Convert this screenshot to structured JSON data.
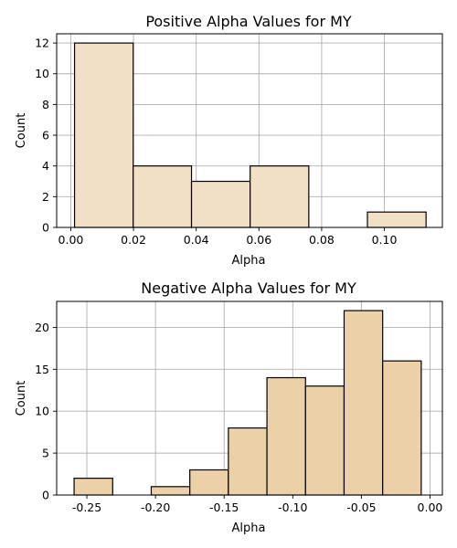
{
  "chart_data": [
    {
      "type": "bar",
      "title": "Positive Alpha Values for MY",
      "xlabel": "Alpha",
      "ylabel": "Count",
      "bar_color": "#f2e0c6",
      "edge_color": "#000000",
      "grid": true,
      "xlim": [
        -0.0045,
        0.1185
      ],
      "ylim": [
        0,
        12.6
      ],
      "xticks": [
        0.0,
        0.02,
        0.04,
        0.06,
        0.08,
        0.1
      ],
      "xtick_labels": [
        "0.00",
        "0.02",
        "0.04",
        "0.06",
        "0.08",
        "0.10"
      ],
      "yticks": [
        0,
        2,
        4,
        6,
        8,
        10,
        12
      ],
      "ytick_labels": [
        "0",
        "2",
        "4",
        "6",
        "8",
        "10",
        "12"
      ],
      "bins": [
        {
          "x0": 0.0012,
          "x1": 0.0199,
          "count": 12
        },
        {
          "x0": 0.0199,
          "x1": 0.0385,
          "count": 4
        },
        {
          "x0": 0.0385,
          "x1": 0.0572,
          "count": 3
        },
        {
          "x0": 0.0572,
          "x1": 0.0759,
          "count": 4
        },
        {
          "x0": 0.0759,
          "x1": 0.0946,
          "count": 0
        },
        {
          "x0": 0.0946,
          "x1": 0.1133,
          "count": 1
        }
      ]
    },
    {
      "type": "bar",
      "title": "Negative Alpha Values for MY",
      "xlabel": "Alpha",
      "ylabel": "Count",
      "bar_color": "#ebd0a8",
      "edge_color": "#000000",
      "grid": true,
      "xlim": [
        -0.272,
        0.009
      ],
      "ylim": [
        0,
        23.1
      ],
      "xticks": [
        -0.25,
        -0.2,
        -0.15,
        -0.1,
        -0.05,
        0.0
      ],
      "xtick_labels": [
        "-0.25",
        "-0.20",
        "-0.15",
        "-0.10",
        "-0.05",
        "0.00"
      ],
      "yticks": [
        0,
        5,
        10,
        15,
        20
      ],
      "ytick_labels": [
        "0",
        "5",
        "10",
        "15",
        "20"
      ],
      "bins": [
        {
          "x0": -0.2593,
          "x1": -0.2312,
          "count": 2
        },
        {
          "x0": -0.2312,
          "x1": -0.2031,
          "count": 0
        },
        {
          "x0": -0.2031,
          "x1": -0.175,
          "count": 1
        },
        {
          "x0": -0.175,
          "x1": -0.1469,
          "count": 3
        },
        {
          "x0": -0.1469,
          "x1": -0.1188,
          "count": 8
        },
        {
          "x0": -0.1188,
          "x1": -0.0907,
          "count": 14
        },
        {
          "x0": -0.0907,
          "x1": -0.0626,
          "count": 13
        },
        {
          "x0": -0.0626,
          "x1": -0.0345,
          "count": 22
        },
        {
          "x0": -0.0345,
          "x1": -0.0064,
          "count": 16
        }
      ]
    }
  ]
}
